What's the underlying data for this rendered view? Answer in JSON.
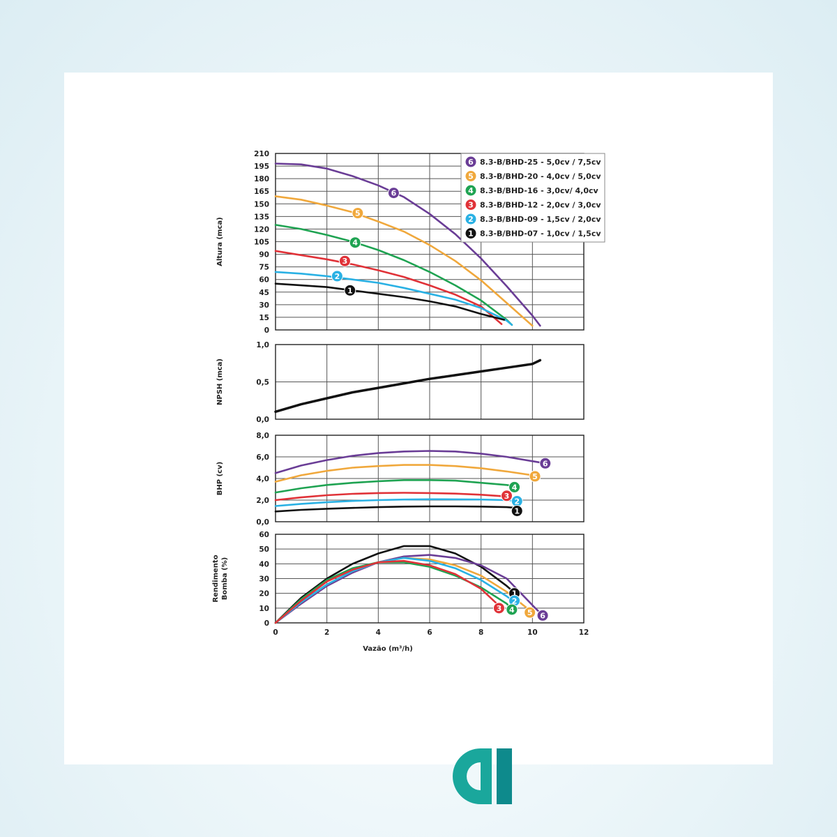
{
  "colors": {
    "6": "#6a3d96",
    "5": "#f0a83c",
    "4": "#1fa352",
    "3": "#e03238",
    "2": "#2ab1e4",
    "1": "#111111",
    "logo_primary": "#1aa79c",
    "logo_dark": "#0e6f78"
  },
  "logo": {
    "icon": "brand-a-logo-icon"
  },
  "chart_data": [
    {
      "id": "altura",
      "type": "line",
      "ylabel": "Altura (mca)",
      "xlabel": "",
      "xlim": [
        0,
        12
      ],
      "ylim": [
        0,
        210
      ],
      "x_ticks": [],
      "y_ticks": [
        0,
        15,
        30,
        45,
        60,
        75,
        90,
        105,
        120,
        135,
        150,
        165,
        180,
        195,
        210
      ],
      "y_tick_labels": [
        "0",
        "15",
        "30",
        "45",
        "60",
        "75",
        "90",
        "105",
        "120",
        "135",
        "150",
        "165",
        "180",
        "195",
        "210"
      ],
      "grid": true,
      "legend": "top-right",
      "legend_entries": [
        {
          "marker": "6",
          "label": "8.3-B/BHD-25 - 5,0cv / 7,5cv"
        },
        {
          "marker": "5",
          "label": "8.3-B/BHD-20 - 4,0cv / 5,0cv"
        },
        {
          "marker": "4",
          "label": "8.3-B/BHD-16 - 3,0cv/ 4,0cv"
        },
        {
          "marker": "3",
          "label": "8.3-B/BHD-12 - 2,0cv / 3,0cv"
        },
        {
          "marker": "2",
          "label": "8.3-B/BHD-09 - 1,5cv / 2,0cv"
        },
        {
          "marker": "1",
          "label": "8.3-B/BHD-07 - 1,0cv / 1,5cv"
        }
      ],
      "series": [
        {
          "marker": "6",
          "x": [
            0,
            1,
            2,
            3,
            4,
            5,
            6,
            7,
            8,
            9,
            10,
            10.3
          ],
          "y": [
            198,
            197,
            192,
            183,
            172,
            158,
            138,
            114,
            85,
            52,
            17,
            5
          ],
          "label_at": [
            4.6,
            163
          ]
        },
        {
          "marker": "5",
          "x": [
            0,
            1,
            2,
            3,
            4,
            5,
            6,
            7,
            8,
            9,
            10
          ],
          "y": [
            159,
            155,
            148,
            140,
            129,
            117,
            101,
            82,
            59,
            32,
            5
          ],
          "label_at": [
            3.2,
            139
          ]
        },
        {
          "marker": "4",
          "x": [
            0,
            1,
            2,
            3,
            4,
            5,
            6,
            7,
            8,
            9,
            9.2
          ],
          "y": [
            125,
            120,
            113,
            105,
            95,
            83,
            69,
            53,
            35,
            12,
            6
          ],
          "label_at": [
            3.1,
            104
          ]
        },
        {
          "marker": "3",
          "x": [
            0,
            1,
            2,
            3,
            4,
            5,
            6,
            7,
            8,
            8.8
          ],
          "y": [
            94,
            89,
            84,
            78,
            71,
            63,
            53,
            42,
            28,
            7
          ],
          "label_at": [
            2.7,
            82
          ]
        },
        {
          "marker": "2",
          "x": [
            0,
            1,
            2,
            3,
            4,
            5,
            6,
            7,
            8,
            9,
            9.2
          ],
          "y": [
            69,
            67,
            64,
            60,
            56,
            50,
            43,
            36,
            26,
            11,
            6
          ],
          "label_at": [
            2.4,
            64
          ]
        },
        {
          "marker": "1",
          "x": [
            0,
            1,
            2,
            3,
            4,
            5,
            6,
            7,
            8,
            8.9
          ],
          "y": [
            55,
            53,
            51,
            47,
            43,
            39,
            34,
            28,
            19,
            12
          ],
          "label_at": [
            2.9,
            47
          ]
        }
      ]
    },
    {
      "id": "npsh",
      "type": "line",
      "ylabel": "NPSH (mca)",
      "xlabel": "",
      "xlim": [
        0,
        12
      ],
      "ylim": [
        0,
        1.0
      ],
      "x_ticks": [],
      "y_ticks": [
        0,
        0.5,
        1.0
      ],
      "y_tick_labels": [
        "0,0",
        "0,5",
        "1,0"
      ],
      "grid": true,
      "series": [
        {
          "marker": "",
          "x": [
            0,
            1,
            2,
            3,
            4,
            5,
            6,
            7,
            8,
            9,
            10,
            10.3
          ],
          "y": [
            0.1,
            0.2,
            0.28,
            0.36,
            0.42,
            0.48,
            0.54,
            0.59,
            0.64,
            0.69,
            0.74,
            0.79
          ]
        }
      ]
    },
    {
      "id": "bhp",
      "type": "line",
      "ylabel": "BHP (cv)",
      "xlabel": "",
      "xlim": [
        0,
        12
      ],
      "ylim": [
        0,
        8.0
      ],
      "x_ticks": [],
      "y_ticks": [
        0,
        2,
        4,
        6,
        8
      ],
      "y_tick_labels": [
        "0,0",
        "2,0",
        "4,0",
        "6,0",
        "8,0"
      ],
      "grid": true,
      "series": [
        {
          "marker": "6",
          "x": [
            0,
            1,
            2,
            3,
            4,
            5,
            6,
            7,
            8,
            9,
            10,
            10.5
          ],
          "y": [
            4.5,
            5.2,
            5.7,
            6.1,
            6.35,
            6.5,
            6.55,
            6.5,
            6.3,
            6.0,
            5.6,
            5.4
          ],
          "label_at": [
            10.5,
            5.4
          ]
        },
        {
          "marker": "5",
          "x": [
            0,
            1,
            2,
            3,
            4,
            5,
            6,
            7,
            8,
            9,
            10
          ],
          "y": [
            3.7,
            4.3,
            4.7,
            5.0,
            5.15,
            5.25,
            5.25,
            5.15,
            4.95,
            4.65,
            4.3
          ],
          "label_at": [
            10.1,
            4.2
          ]
        },
        {
          "marker": "4",
          "x": [
            0,
            1,
            2,
            3,
            4,
            5,
            6,
            7,
            8,
            9,
            9.3
          ],
          "y": [
            2.7,
            3.1,
            3.4,
            3.6,
            3.75,
            3.85,
            3.85,
            3.8,
            3.6,
            3.4,
            3.3
          ],
          "label_at": [
            9.3,
            3.2
          ]
        },
        {
          "marker": "3",
          "x": [
            0,
            1,
            2,
            3,
            4,
            5,
            6,
            7,
            8,
            8.9
          ],
          "y": [
            2.0,
            2.25,
            2.45,
            2.58,
            2.65,
            2.68,
            2.65,
            2.6,
            2.5,
            2.35
          ],
          "label_at": [
            9.0,
            2.4
          ]
        },
        {
          "marker": "2",
          "x": [
            0,
            1,
            2,
            3,
            4,
            5,
            6,
            7,
            8,
            9,
            9.3
          ],
          "y": [
            1.45,
            1.65,
            1.8,
            1.92,
            2.0,
            2.05,
            2.08,
            2.07,
            2.05,
            2.0,
            1.95
          ],
          "label_at": [
            9.4,
            1.9
          ]
        },
        {
          "marker": "1",
          "x": [
            0,
            1,
            2,
            3,
            4,
            5,
            6,
            7,
            8,
            9,
            9.3
          ],
          "y": [
            0.95,
            1.1,
            1.2,
            1.28,
            1.35,
            1.4,
            1.42,
            1.42,
            1.4,
            1.35,
            1.3
          ],
          "label_at": [
            9.4,
            1.0
          ]
        }
      ]
    },
    {
      "id": "rendimento",
      "type": "line",
      "ylabel": "Rendimento Bomba (%)",
      "xlabel": "Vazão (m³/h)",
      "xlim": [
        0,
        12
      ],
      "ylim": [
        0,
        60
      ],
      "x_ticks": [
        0,
        2,
        4,
        6,
        8,
        10,
        12
      ],
      "x_tick_labels": [
        "0",
        "2",
        "4",
        "6",
        "8",
        "10",
        "12"
      ],
      "y_ticks": [
        0,
        10,
        20,
        30,
        40,
        50,
        60
      ],
      "y_tick_labels": [
        "0",
        "10",
        "20",
        "30",
        "40",
        "50",
        "60"
      ],
      "grid": true,
      "series": [
        {
          "marker": "1",
          "x": [
            0,
            1,
            2,
            3,
            4,
            5,
            6,
            7,
            8,
            9,
            9.4
          ],
          "y": [
            0,
            17,
            30,
            40,
            47,
            52,
            52,
            47,
            38,
            25,
            19
          ],
          "label_at": [
            9.3,
            20
          ]
        },
        {
          "marker": "6",
          "x": [
            0,
            1,
            2,
            3,
            4,
            5,
            6,
            7,
            8,
            9,
            10,
            10.4
          ],
          "y": [
            0,
            13,
            25,
            34,
            41,
            45,
            46,
            44,
            39,
            30,
            12,
            5
          ],
          "label_at": [
            10.4,
            5
          ]
        },
        {
          "marker": "5",
          "x": [
            0,
            1,
            2,
            3,
            4,
            5,
            6,
            7,
            8,
            9,
            10
          ],
          "y": [
            0,
            14,
            26,
            35,
            41,
            44,
            43,
            39,
            32,
            21,
            7
          ],
          "label_at": [
            9.9,
            7
          ]
        },
        {
          "marker": "2",
          "x": [
            0,
            1,
            2,
            3,
            4,
            5,
            6,
            7,
            8,
            9,
            9.3
          ],
          "y": [
            0,
            14,
            26,
            35,
            41,
            44,
            42,
            37,
            29,
            18,
            14
          ],
          "label_at": [
            9.3,
            15
          ]
        },
        {
          "marker": "4",
          "x": [
            0,
            1,
            2,
            3,
            4,
            5,
            6,
            7,
            8,
            9,
            9.2
          ],
          "y": [
            0,
            16,
            29,
            37,
            41,
            41,
            38,
            32,
            24,
            13,
            9
          ],
          "label_at": [
            9.2,
            9
          ]
        },
        {
          "marker": "3",
          "x": [
            0,
            1,
            2,
            3,
            4,
            5,
            6,
            7,
            8,
            8.8
          ],
          "y": [
            0,
            15,
            28,
            36,
            41,
            42,
            39,
            33,
            23,
            10
          ],
          "label_at": [
            8.7,
            10
          ]
        }
      ]
    }
  ]
}
